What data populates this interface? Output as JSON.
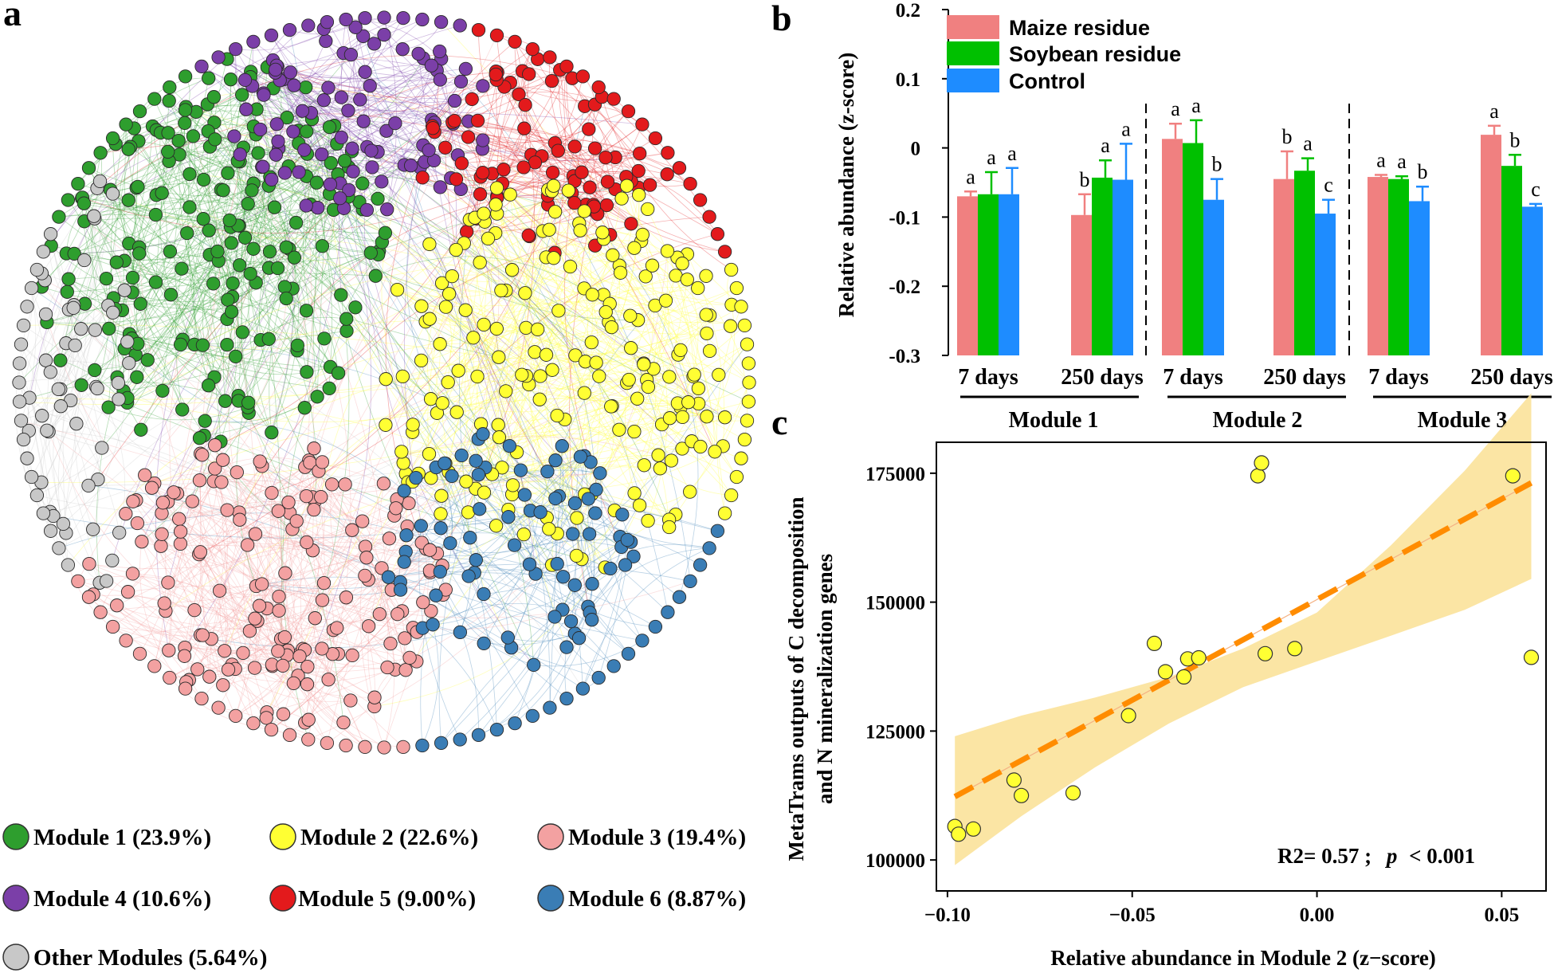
{
  "panels": {
    "a": "a",
    "b": "b",
    "c": "c"
  },
  "colors": {
    "module1": "#2e9e2e",
    "module2": "#ffff33",
    "module3": "#f3a1a1",
    "module4": "#7b3fa8",
    "module5": "#e31a1c",
    "module6": "#3a7db5",
    "other": "#c8c8c8",
    "maize": "#f08080",
    "soybean": "#00c000",
    "control": "#1e8cff",
    "fit_line": "#ff8c00",
    "ci_band": "#fbe29a"
  },
  "network_legend": [
    {
      "label": "Module 1 (23.9%)",
      "color": "#2e9e2e"
    },
    {
      "label": "Module 2 (22.6%)",
      "color": "#ffff33"
    },
    {
      "label": "Module 3 (19.4%)",
      "color": "#f3a1a1"
    },
    {
      "label": "Module 4 (10.6%)",
      "color": "#7b3fa8"
    },
    {
      "label": "Module 5 (9.00%)",
      "color": "#e31a1c"
    },
    {
      "label": "Module 6 (8.87%)",
      "color": "#3a7db5"
    },
    {
      "label": "Other Modules (5.64%)",
      "color": "#c8c8c8"
    }
  ],
  "chart_data": [
    {
      "type": "network",
      "description_modules": [
        "Module 1",
        "Module 2",
        "Module 3",
        "Module 4",
        "Module 5",
        "Module 6",
        "Other Modules"
      ],
      "module_shares_percent": [
        23.9,
        22.6,
        19.4,
        10.6,
        9.0,
        8.87,
        5.64
      ]
    },
    {
      "type": "bar",
      "ylabel": "Relative abundance (z-score)",
      "ylim": [
        -0.3,
        0.2
      ],
      "yticks": [
        0.2,
        0.1,
        0,
        -0.1,
        -0.2,
        -0.3
      ],
      "ytick_labels": [
        "0.2",
        "0.1",
        "0",
        "-0.1",
        "-0.2",
        "-0.3"
      ],
      "series_names": [
        "Maize residue",
        "Soybean residue",
        "Control"
      ],
      "groups": [
        {
          "module": "Module 1",
          "timepoints": [
            {
              "label": "7 days",
              "values": [
                -0.07,
                -0.067,
                -0.067
              ],
              "errors": [
                0.007,
                0.032,
                0.038
              ],
              "letters": [
                "a",
                "a",
                "a"
              ]
            },
            {
              "label": "250 days",
              "values": [
                -0.097,
                -0.043,
                -0.046
              ],
              "errors": [
                0.03,
                0.025,
                0.052
              ],
              "letters": [
                "b",
                "a",
                "a"
              ]
            }
          ]
        },
        {
          "module": "Module 2",
          "timepoints": [
            {
              "label": "7 days",
              "values": [
                0.013,
                0.007,
                -0.075
              ],
              "errors": [
                0.022,
                0.033,
                0.03
              ],
              "letters": [
                "a",
                "a",
                "b"
              ]
            },
            {
              "label": "250 days",
              "values": [
                -0.045,
                -0.033,
                -0.095
              ],
              "errors": [
                0.04,
                0.018,
                0.02
              ],
              "letters": [
                "b",
                "a",
                "c"
              ]
            }
          ]
        },
        {
          "module": "Module 3",
          "timepoints": [
            {
              "label": "7 days",
              "values": [
                -0.042,
                -0.045,
                -0.077
              ],
              "errors": [
                0.003,
                0.004,
                0.021
              ],
              "letters": [
                "a",
                "a",
                "b"
              ]
            },
            {
              "label": "250 days",
              "values": [
                0.019,
                -0.026,
                -0.085
              ],
              "errors": [
                0.013,
                0.016,
                0.004
              ],
              "letters": [
                "a",
                "b",
                "c"
              ]
            }
          ]
        }
      ]
    },
    {
      "type": "scatter",
      "xlabel": "Relative abundance in Module 2 (z−score)",
      "ylabel_line1": "MetaTrams outputs of C decomposition",
      "ylabel_line2": "and N mineralization genes",
      "xlim": [
        -0.103,
        0.062
      ],
      "ylim": [
        94000,
        181000
      ],
      "xticks": [
        -0.1,
        -0.05,
        0.0,
        0.05
      ],
      "xtick_labels": [
        "−0.10",
        "−0.05",
        "0.00",
        "0.05"
      ],
      "yticks": [
        100000,
        125000,
        150000,
        175000
      ],
      "ytick_labels": [
        "100000",
        "125000",
        "150000",
        "175000"
      ],
      "points": [
        [
          -0.098,
          106500
        ],
        [
          -0.097,
          105000
        ],
        [
          -0.093,
          106000
        ],
        [
          -0.082,
          115500
        ],
        [
          -0.08,
          112500
        ],
        [
          -0.066,
          113000
        ],
        [
          -0.051,
          128000
        ],
        [
          -0.044,
          142000
        ],
        [
          -0.041,
          136500
        ],
        [
          -0.036,
          135500
        ],
        [
          -0.035,
          139000
        ],
        [
          -0.032,
          139200
        ],
        [
          -0.016,
          174500
        ],
        [
          -0.015,
          177000
        ],
        [
          -0.014,
          140000
        ],
        [
          -0.006,
          141000
        ],
        [
          0.053,
          174500
        ],
        [
          0.058,
          139300
        ]
      ],
      "fit": {
        "slope": 390000,
        "intercept": 150500,
        "x_range": [
          -0.098,
          0.058
        ]
      },
      "ci_band": {
        "x": [
          -0.098,
          -0.08,
          -0.06,
          -0.04,
          -0.02,
          0.0,
          0.02,
          0.04,
          0.058
        ],
        "lower": [
          99000,
          108500,
          118000,
          126500,
          133500,
          138500,
          143500,
          148500,
          154500
        ],
        "upper": [
          124000,
          128000,
          131500,
          135500,
          141000,
          148000,
          161000,
          175500,
          190500
        ]
      },
      "stats_r2": "R2= 0.57 ;",
      "stats_p_symbol": "p",
      "stats_p_value": "< 0.001"
    }
  ]
}
